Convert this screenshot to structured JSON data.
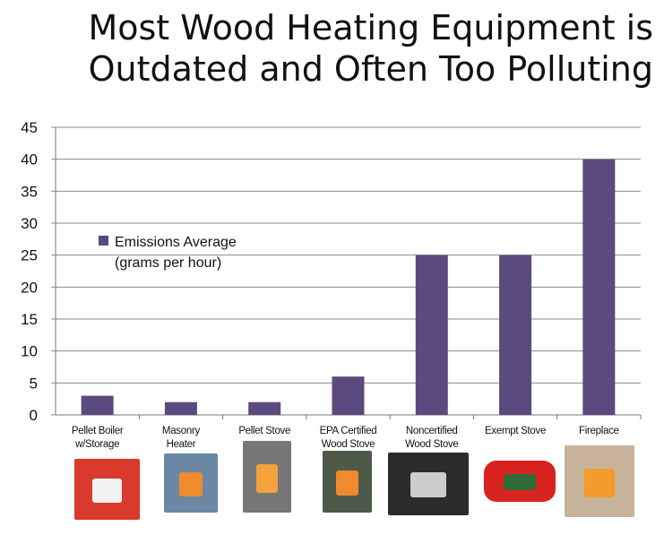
{
  "title_line1": "Most Wood Heating Equipment is",
  "title_line2": "Outdated and Often Too Polluting",
  "chart_data": {
    "type": "bar",
    "title": "Most Wood Heating Equipment is Outdated and Often Too Polluting",
    "categories": [
      [
        "Pellet Boiler",
        "w/Storage"
      ],
      [
        "Masonry",
        "Heater"
      ],
      [
        "Pellet Stove"
      ],
      [
        "EPA Certified",
        "Wood Stove"
      ],
      [
        "Noncertified",
        "Wood Stove"
      ],
      [
        "Exempt Stove"
      ],
      [
        "Fireplace"
      ]
    ],
    "series": [
      {
        "name": "Emissions Average (grams per hour)",
        "values": [
          3,
          2,
          2,
          6,
          25,
          25,
          40
        ],
        "color": "#5b4a7e"
      }
    ],
    "legend_lines": [
      "Emissions Average",
      "(grams per hour)"
    ],
    "yticks": [
      0,
      5,
      10,
      15,
      20,
      25,
      30,
      35,
      40,
      45
    ],
    "ylim": [
      0,
      45
    ],
    "grid": true,
    "legend_position": "left-inside",
    "gridline_color": "#888888",
    "tick_color": "#111111"
  },
  "thumbnails": [
    {
      "name": "pellet-boiler-photo",
      "base": "#d93a2b",
      "accent": "#f2f2f2"
    },
    {
      "name": "masonry-heater-photo",
      "base": "#6a88a4",
      "accent": "#f08b2b"
    },
    {
      "name": "pellet-stove-photo",
      "base": "#777777",
      "accent": "#f3a23c"
    },
    {
      "name": "epa-wood-stove-photo",
      "base": "#4d5a4a",
      "accent": "#ef8a2e"
    },
    {
      "name": "noncertified-wood-stove-photo",
      "base": "#2b2b2b",
      "accent": "#cccccc"
    },
    {
      "name": "exempt-stove-photo",
      "base": "#d8221f",
      "accent": "#2f6b39"
    },
    {
      "name": "fireplace-photo",
      "base": "#c6b39a",
      "accent": "#f39b2b"
    }
  ]
}
